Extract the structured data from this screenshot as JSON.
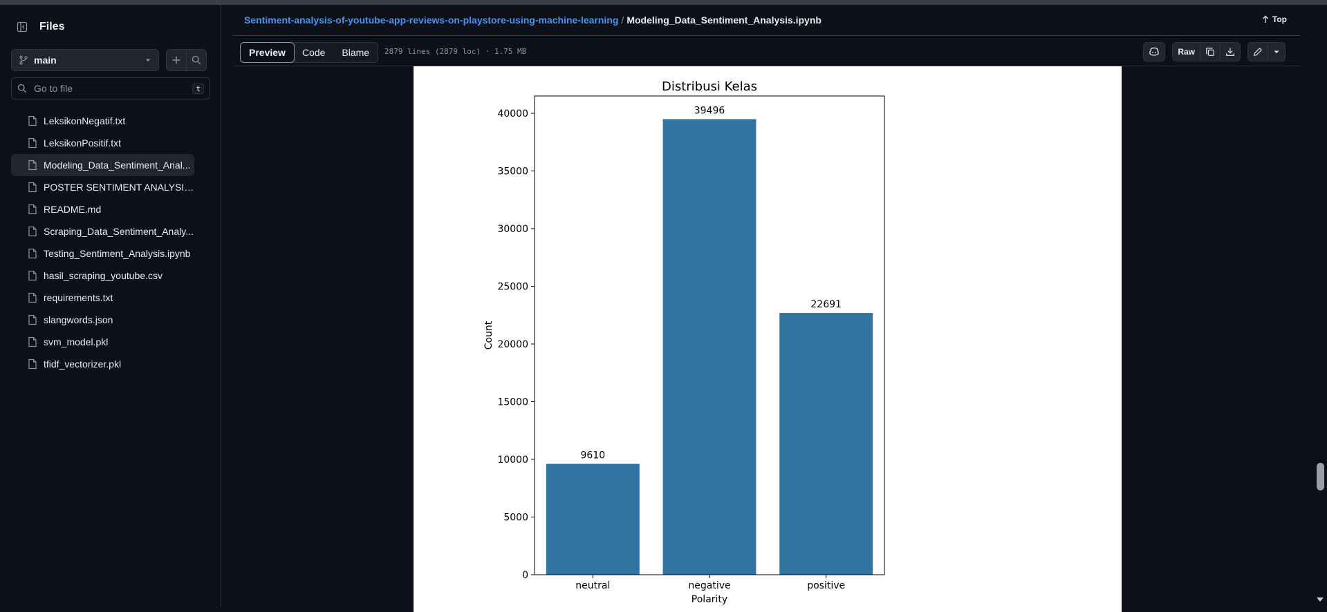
{
  "sidebar": {
    "title": "Files",
    "branch": "main",
    "search_placeholder": "Go to file",
    "search_shortcut": "t",
    "files": [
      {
        "name": "LeksikonNegatif.txt",
        "active": false
      },
      {
        "name": "LeksikonPositif.txt",
        "active": false
      },
      {
        "name": "Modeling_Data_Sentiment_Anal...",
        "active": true
      },
      {
        "name": "POSTER SENTIMENT ANALYSIS....",
        "active": false
      },
      {
        "name": "README.md",
        "active": false
      },
      {
        "name": "Scraping_Data_Sentiment_Analy...",
        "active": false
      },
      {
        "name": "Testing_Sentiment_Analysis.ipynb",
        "active": false
      },
      {
        "name": "hasil_scraping_youtube.csv",
        "active": false
      },
      {
        "name": "requirements.txt",
        "active": false
      },
      {
        "name": "slangwords.json",
        "active": false
      },
      {
        "name": "svm_model.pkl",
        "active": false
      },
      {
        "name": "tfidf_vectorizer.pkl",
        "active": false
      }
    ]
  },
  "header": {
    "repo": "Sentiment-analysis-of-youtube-app-reviews-on-playstore-using-machine-learning",
    "separator": "/",
    "file": "Modeling_Data_Sentiment_Analysis.ipynb",
    "top_label": "Top"
  },
  "toolbar": {
    "tabs": [
      "Preview",
      "Code",
      "Blame"
    ],
    "active_tab": "Preview",
    "file_info": "2879 lines (2879 loc) · 1.75 MB",
    "raw_label": "Raw"
  },
  "chart_data": {
    "type": "bar",
    "title": "Distribusi Kelas",
    "xlabel": "Polarity",
    "ylabel": "Count",
    "categories": [
      "neutral",
      "negative",
      "positive"
    ],
    "values": [
      9610,
      39496,
      22691
    ],
    "data_labels": [
      "9610",
      "39496",
      "22691"
    ],
    "ylim": [
      0,
      41500
    ],
    "yticks": [
      0,
      5000,
      10000,
      15000,
      20000,
      25000,
      30000,
      35000,
      40000
    ],
    "bar_color": "#3274a1",
    "grid": false,
    "legend": "none"
  }
}
